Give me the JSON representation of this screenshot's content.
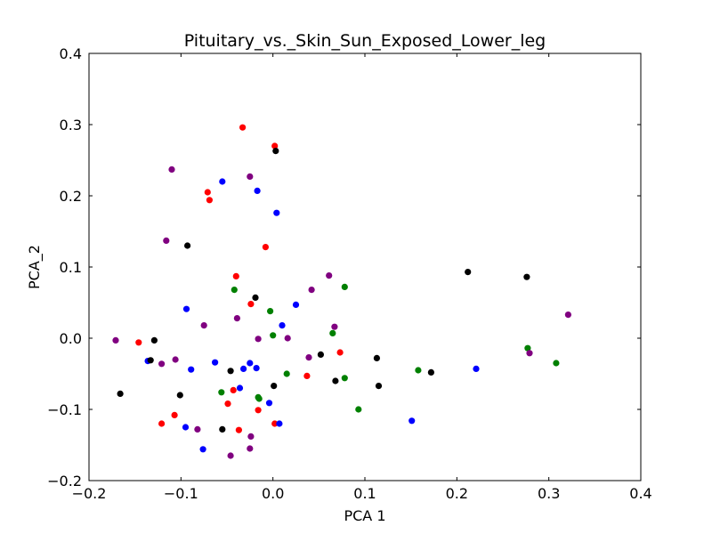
{
  "chart_data": {
    "type": "scatter",
    "title": "Pituitary_vs._Skin_Sun_Exposed_Lower_leg",
    "xlabel": "PCA 1",
    "ylabel": "PCA_2",
    "xlim": [
      -0.2,
      0.4
    ],
    "ylim": [
      -0.2,
      0.4
    ],
    "xticks": [
      "−0.2",
      "−0.1",
      "0.0",
      "0.1",
      "0.2",
      "0.3",
      "0.4"
    ],
    "yticks": [
      "−0.2",
      "−0.1",
      "0.0",
      "0.1",
      "0.2",
      "0.3",
      "0.4"
    ],
    "grid": false,
    "colors": {
      "red": "#ff0000",
      "blue": "#0000ff",
      "black": "#000000",
      "green": "#008000",
      "purple": "#800080"
    },
    "series": [
      {
        "color": "red",
        "points": [
          [
            -0.033,
            0.296
          ],
          [
            0.002,
            0.27
          ],
          [
            -0.071,
            0.205
          ],
          [
            -0.069,
            0.194
          ],
          [
            -0.008,
            0.128
          ],
          [
            -0.04,
            0.087
          ],
          [
            -0.024,
            0.048
          ],
          [
            -0.146,
            -0.006
          ],
          [
            0.073,
            -0.02
          ],
          [
            0.037,
            -0.053
          ],
          [
            -0.043,
            -0.073
          ],
          [
            -0.049,
            -0.092
          ],
          [
            -0.016,
            -0.101
          ],
          [
            -0.107,
            -0.108
          ],
          [
            -0.121,
            -0.12
          ],
          [
            0.002,
            -0.12
          ],
          [
            -0.037,
            -0.129
          ]
        ]
      },
      {
        "color": "blue",
        "points": [
          [
            -0.055,
            0.22
          ],
          [
            -0.017,
            0.207
          ],
          [
            0.004,
            0.176
          ],
          [
            -0.094,
            0.041
          ],
          [
            0.025,
            0.047
          ],
          [
            0.01,
            0.018
          ],
          [
            -0.136,
            -0.032
          ],
          [
            -0.063,
            -0.034
          ],
          [
            -0.089,
            -0.044
          ],
          [
            -0.032,
            -0.043
          ],
          [
            -0.018,
            -0.042
          ],
          [
            -0.025,
            -0.035
          ],
          [
            0.221,
            -0.043
          ],
          [
            -0.036,
            -0.07
          ],
          [
            -0.004,
            -0.091
          ],
          [
            0.151,
            -0.116
          ],
          [
            0.007,
            -0.12
          ],
          [
            -0.095,
            -0.125
          ],
          [
            -0.076,
            -0.156
          ]
        ]
      },
      {
        "color": "black",
        "points": [
          [
            0.003,
            0.263
          ],
          [
            -0.093,
            0.13
          ],
          [
            0.212,
            0.093
          ],
          [
            0.276,
            0.086
          ],
          [
            -0.019,
            0.057
          ],
          [
            -0.129,
            -0.003
          ],
          [
            -0.133,
            -0.031
          ],
          [
            0.052,
            -0.023
          ],
          [
            0.113,
            -0.028
          ],
          [
            -0.046,
            -0.046
          ],
          [
            0.172,
            -0.048
          ],
          [
            0.068,
            -0.06
          ],
          [
            0.115,
            -0.067
          ],
          [
            0.001,
            -0.067
          ],
          [
            -0.166,
            -0.078
          ],
          [
            -0.101,
            -0.08
          ],
          [
            -0.055,
            -0.128
          ]
        ]
      },
      {
        "color": "green",
        "points": [
          [
            0.078,
            0.072
          ],
          [
            -0.042,
            0.068
          ],
          [
            -0.003,
            0.038
          ],
          [
            0.0,
            0.004
          ],
          [
            0.065,
            0.007
          ],
          [
            0.277,
            -0.014
          ],
          [
            0.308,
            -0.035
          ],
          [
            0.158,
            -0.045
          ],
          [
            0.015,
            -0.05
          ],
          [
            0.078,
            -0.056
          ],
          [
            -0.056,
            -0.076
          ],
          [
            -0.016,
            -0.083
          ],
          [
            -0.015,
            -0.085
          ],
          [
            0.093,
            -0.1
          ]
        ]
      },
      {
        "color": "purple",
        "points": [
          [
            -0.11,
            0.237
          ],
          [
            -0.025,
            0.227
          ],
          [
            -0.116,
            0.137
          ],
          [
            0.061,
            0.088
          ],
          [
            0.042,
            0.068
          ],
          [
            -0.039,
            0.028
          ],
          [
            -0.075,
            0.018
          ],
          [
            0.067,
            0.016
          ],
          [
            0.321,
            0.033
          ],
          [
            -0.171,
            -0.003
          ],
          [
            -0.016,
            -0.001
          ],
          [
            0.016,
            0.0
          ],
          [
            -0.106,
            -0.03
          ],
          [
            -0.121,
            -0.036
          ],
          [
            0.039,
            -0.027
          ],
          [
            0.279,
            -0.021
          ],
          [
            -0.082,
            -0.128
          ],
          [
            -0.024,
            -0.138
          ],
          [
            -0.025,
            -0.155
          ],
          [
            -0.046,
            -0.165
          ]
        ]
      }
    ]
  }
}
